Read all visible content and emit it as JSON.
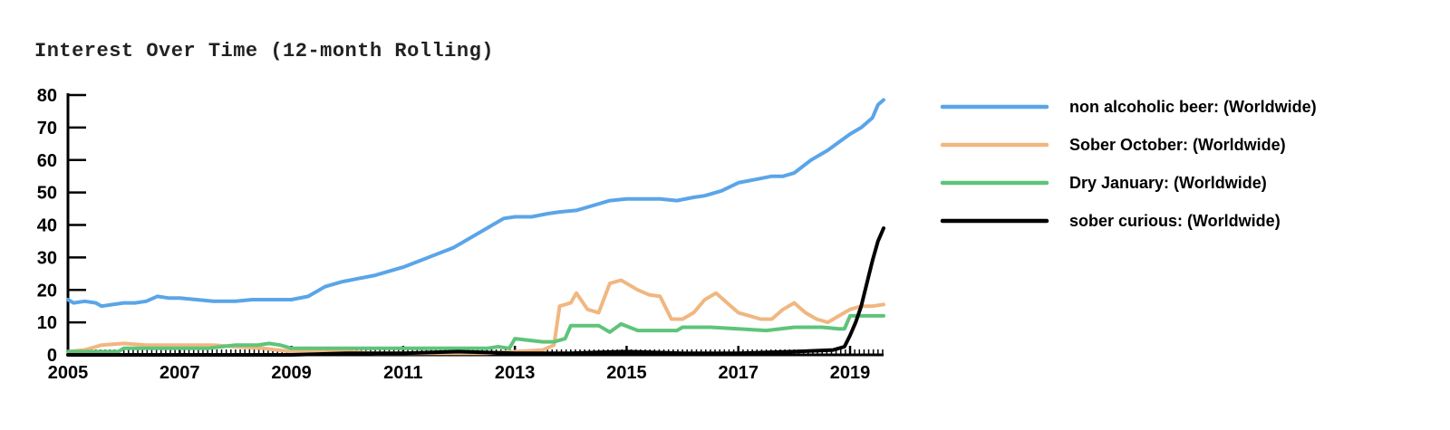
{
  "chart_data": {
    "type": "line",
    "title": "Interest Over Time (12-month Rolling)",
    "xlabel": "",
    "ylabel": "",
    "xlim": [
      2005,
      2019.6
    ],
    "ylim": [
      0,
      80
    ],
    "x_ticks": [
      2005,
      2007,
      2009,
      2011,
      2013,
      2015,
      2017,
      2019
    ],
    "x_tick_labels": [
      "2005",
      "2007",
      "2009",
      "2011",
      "2013",
      "2015",
      "2017",
      "2019"
    ],
    "y_ticks": [
      0,
      10,
      20,
      30,
      40,
      50,
      60,
      70,
      80
    ],
    "y_tick_labels": [
      "0",
      "10",
      "20",
      "30",
      "40",
      "50",
      "60",
      "70",
      "80"
    ],
    "grid": false,
    "legend_position": "right",
    "series": [
      {
        "name": "non alcoholic beer: (Worldwide)",
        "color": "#5aa5e8",
        "x": [
          2005.0,
          2005.1,
          2005.3,
          2005.5,
          2005.6,
          2005.8,
          2006.0,
          2006.2,
          2006.4,
          2006.6,
          2006.8,
          2007.0,
          2007.3,
          2007.6,
          2008.0,
          2008.3,
          2008.6,
          2009.0,
          2009.3,
          2009.6,
          2009.9,
          2010.2,
          2010.5,
          2010.8,
          2011.0,
          2011.3,
          2011.6,
          2011.9,
          2012.2,
          2012.5,
          2012.8,
          2013.0,
          2013.3,
          2013.6,
          2013.8,
          2014.1,
          2014.4,
          2014.7,
          2015.0,
          2015.3,
          2015.6,
          2015.9,
          2016.2,
          2016.4,
          2016.7,
          2017.0,
          2017.3,
          2017.6,
          2017.8,
          2018.0,
          2018.3,
          2018.6,
          2018.8,
          2019.0,
          2019.2,
          2019.4,
          2019.5,
          2019.6
        ],
        "y": [
          17,
          16,
          16.5,
          16,
          15,
          15.5,
          16,
          16,
          16.5,
          18,
          17.5,
          17.5,
          17,
          16.5,
          16.5,
          17,
          17,
          17,
          18,
          21,
          22.5,
          23.5,
          24.5,
          26,
          27,
          29,
          31,
          33,
          36,
          39,
          42,
          42.5,
          42.5,
          43.5,
          44,
          44.5,
          46,
          47.5,
          48,
          48,
          48,
          47.5,
          48.5,
          49,
          50.5,
          53,
          54,
          55,
          55,
          56,
          60,
          63,
          65.5,
          68,
          70,
          73,
          77,
          78.5
        ]
      },
      {
        "name": "Sober October: (Worldwide)",
        "color": "#f0b781",
        "x": [
          2005.0,
          2005.3,
          2005.6,
          2006.0,
          2006.4,
          2006.8,
          2007.2,
          2007.6,
          2008.0,
          2008.5,
          2009.0,
          2009.5,
          2010.0,
          2010.5,
          2011.0,
          2011.5,
          2012.0,
          2012.5,
          2013.0,
          2013.5,
          2013.7,
          2013.8,
          2014.0,
          2014.1,
          2014.3,
          2014.5,
          2014.7,
          2014.9,
          2015.2,
          2015.4,
          2015.6,
          2015.8,
          2016.0,
          2016.2,
          2016.4,
          2016.6,
          2016.8,
          2017.0,
          2017.2,
          2017.4,
          2017.6,
          2017.8,
          2018.0,
          2018.2,
          2018.4,
          2018.6,
          2018.8,
          2019.0,
          2019.2,
          2019.4,
          2019.6
        ],
        "y": [
          1,
          1.5,
          3,
          3.5,
          3,
          3,
          3,
          3,
          2.5,
          2,
          1,
          1,
          1,
          0.5,
          0.5,
          0.5,
          0.5,
          0.5,
          1,
          1.5,
          3,
          15,
          16,
          19,
          14,
          13,
          22,
          23,
          20,
          18.5,
          18,
          11,
          11,
          13,
          17,
          19,
          16,
          13,
          12,
          11,
          11,
          14,
          16,
          13,
          11,
          10,
          12,
          14,
          15,
          15,
          15.5
        ]
      },
      {
        "name": "Dry January: (Worldwide)",
        "color": "#5ec47a",
        "x": [
          2005.0,
          2005.5,
          2005.9,
          2006.0,
          2006.5,
          2007.0,
          2007.5,
          2008.0,
          2008.4,
          2008.6,
          2008.8,
          2009.0,
          2009.5,
          2010.0,
          2010.5,
          2011.0,
          2011.5,
          2012.0,
          2012.5,
          2012.7,
          2012.9,
          2013.0,
          2013.5,
          2013.7,
          2013.9,
          2014.0,
          2014.5,
          2014.7,
          2014.9,
          2015.2,
          2015.5,
          2015.9,
          2016.0,
          2016.5,
          2017.0,
          2017.5,
          2018.0,
          2018.5,
          2018.8,
          2018.9,
          2019.0,
          2019.3,
          2019.6
        ],
        "y": [
          1,
          1,
          1,
          2,
          2,
          2,
          2,
          3,
          3,
          3.5,
          3,
          2,
          2,
          2,
          2,
          2,
          2,
          2,
          2,
          2.5,
          2,
          5,
          4,
          4,
          5,
          9,
          9,
          7,
          9.5,
          7.5,
          7.5,
          7.5,
          8.5,
          8.5,
          8,
          7.5,
          8.5,
          8.5,
          8,
          8,
          12,
          12,
          12
        ]
      },
      {
        "name": "sober curious: (Worldwide)",
        "color": "#000000",
        "x": [
          2005.0,
          2006.0,
          2007.0,
          2008.0,
          2009.0,
          2010.0,
          2011.0,
          2012.0,
          2013.0,
          2014.0,
          2015.0,
          2016.0,
          2017.0,
          2018.0,
          2018.7,
          2018.9,
          2019.0,
          2019.1,
          2019.2,
          2019.3,
          2019.4,
          2019.5,
          2019.6
        ],
        "y": [
          0,
          0,
          0,
          0,
          0,
          0.5,
          0.5,
          1,
          0.5,
          0.5,
          1,
          0.5,
          0.5,
          1,
          1.5,
          2.5,
          6,
          10,
          15,
          22,
          29,
          35,
          39
        ]
      }
    ]
  }
}
